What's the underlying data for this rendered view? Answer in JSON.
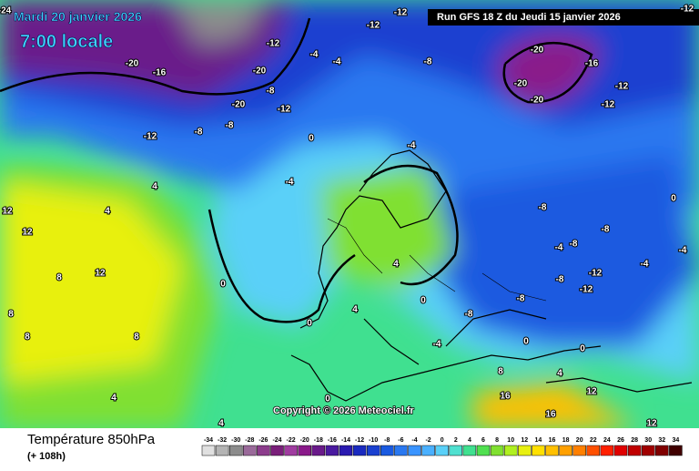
{
  "header": {
    "date": "Mardi 20 janvier 2026",
    "time": "7:00 locale",
    "run": "Run GFS 18 Z du Jeudi 15 janvier 2026"
  },
  "copyright": "Copyright © 2026 Meteociel.fr",
  "footer": {
    "title": "Température 850hPa",
    "lead": "(+ 108h)"
  },
  "scale": {
    "ticks": [
      -34,
      -32,
      -30,
      -28,
      -26,
      -24,
      -22,
      -20,
      -18,
      -16,
      -14,
      -12,
      -10,
      -8,
      -6,
      -4,
      -2,
      0,
      2,
      4,
      6,
      8,
      10,
      12,
      14,
      16,
      18,
      20,
      22,
      24,
      26,
      28,
      30,
      32,
      34
    ],
    "colors": [
      "#e0e0e0",
      "#b4b4b4",
      "#8c8c8c",
      "#9a6a9a",
      "#8c3c8c",
      "#7a1f7a",
      "#a03ca0",
      "#8a1a8a",
      "#6a1a8a",
      "#4a1aa0",
      "#2a1ab0",
      "#1a2ac0",
      "#1a40d0",
      "#1a5ae0",
      "#2a78f0",
      "#3a94ff",
      "#4ab0ff",
      "#5ad0f8",
      "#50e0d0",
      "#40e090",
      "#50e050",
      "#80e030",
      "#b0f020",
      "#e8f010",
      "#ffe000",
      "#ffc000",
      "#ffa000",
      "#ff8000",
      "#ff5000",
      "#ff2000",
      "#e00000",
      "#c00000",
      "#a00000",
      "#800000",
      "#400000"
    ]
  },
  "contour_labels": [
    -24,
    -20,
    -16,
    -20,
    -12,
    -8,
    -20,
    -12,
    -8,
    -12,
    -8,
    -4,
    -8,
    -12,
    -12,
    -20,
    -16,
    -20,
    -12,
    -20,
    -12,
    -12,
    -8,
    -8,
    -4,
    -8,
    -8,
    -12,
    -12,
    -8,
    -4,
    -4,
    0,
    -4,
    -4,
    4,
    4,
    12,
    12,
    12,
    8,
    8,
    8,
    8,
    0,
    0,
    4,
    4,
    0,
    -8,
    -4,
    0,
    0,
    4,
    8,
    12,
    16,
    16,
    12,
    4,
    4,
    0,
    -4,
    0
  ]
}
